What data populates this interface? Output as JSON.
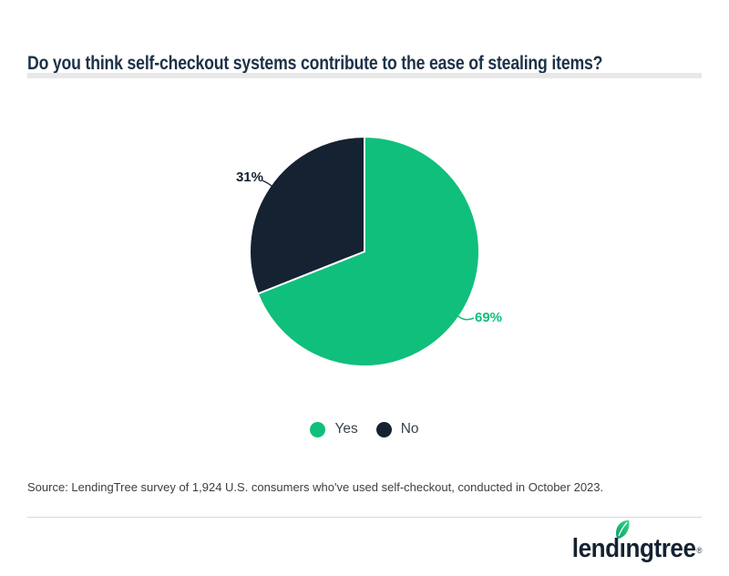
{
  "header": {
    "title": "Do you think self-checkout systems contribute to the ease of stealing items?",
    "title_color": "#1d3147",
    "divider_color": "#e8e8e8"
  },
  "chart_data": {
    "type": "pie",
    "title": "Do you think self-checkout systems contribute to the ease of stealing items?",
    "categories": [
      "Yes",
      "No"
    ],
    "values": [
      69,
      31
    ],
    "pct_labels": [
      "69%",
      "31%"
    ],
    "colors": [
      "#10BF7C",
      "#152232"
    ],
    "start_angle": "top",
    "direction": "clockwise",
    "legend_position": "bottom",
    "slice_gap_color": "#ffffff"
  },
  "legend": {
    "items": [
      {
        "label": "Yes",
        "color": "#10BF7C"
      },
      {
        "label": "No",
        "color": "#152232"
      }
    ]
  },
  "source_note": "Source: LendingTree survey of 1,924 U.S. consumers who've used self-checkout, conducted in October 2023.",
  "footer": {
    "logo_text": "lendingtree",
    "registered_mark": "®",
    "logo_color": "#152232",
    "leaf_gradient": [
      "#0a9c63",
      "#35d891"
    ]
  }
}
